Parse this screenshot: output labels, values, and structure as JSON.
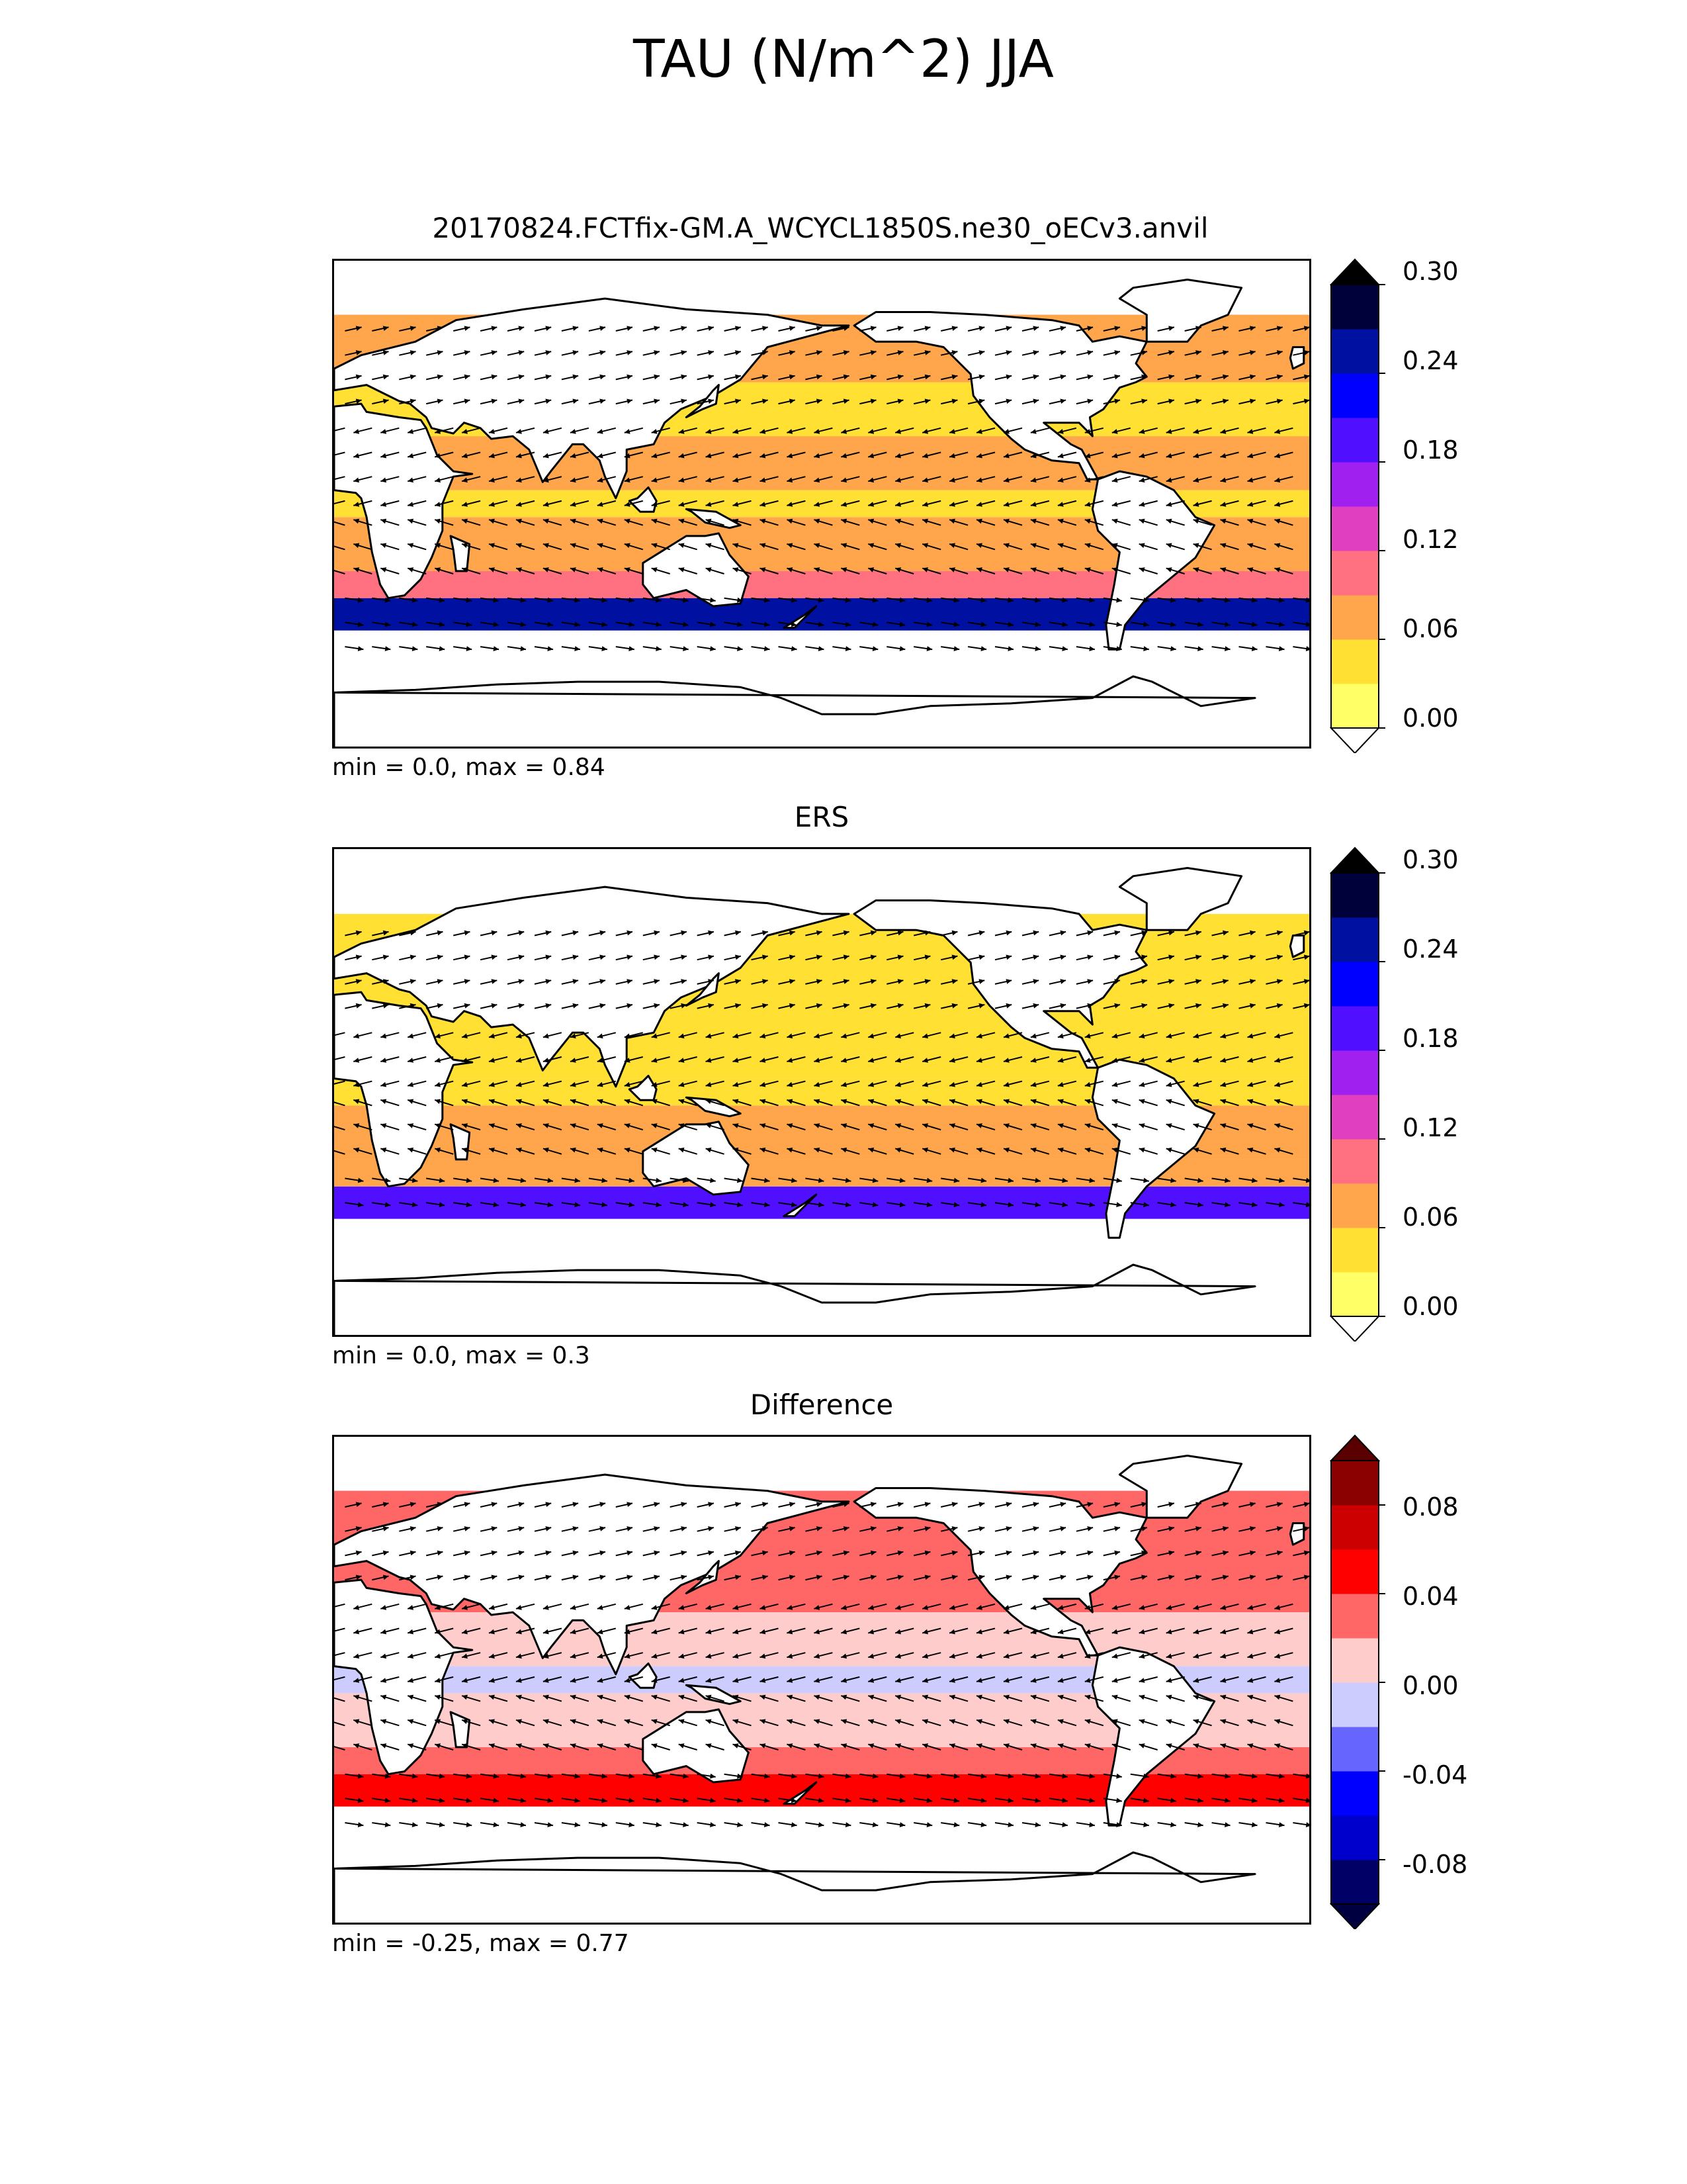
{
  "figure": {
    "title": "TAU (N/m^2) JJA"
  },
  "panels": [
    {
      "id": "test",
      "title": "20170824.FCTfix-GM.A_WCYCL1850S.ne30_oECv3.anvil",
      "stats": "min = 0.0, max = 0.84",
      "colorbar": {
        "colors": [
          "#ffff66",
          "#ffe033",
          "#ffa64d",
          "#ff7080",
          "#e040c0",
          "#a020f0",
          "#5010ff",
          "#0000ff",
          "#0010a0",
          "#00003a"
        ],
        "over_color": "#000000",
        "under_color": "#ffffff",
        "ticks": [
          "0.00",
          "0.06",
          "0.12",
          "0.18",
          "0.24",
          "0.30"
        ]
      }
    },
    {
      "id": "ref",
      "title": "ERS",
      "stats": "min = 0.0, max = 0.3",
      "colorbar": {
        "colors": [
          "#ffff66",
          "#ffe033",
          "#ffa64d",
          "#ff7080",
          "#e040c0",
          "#a020f0",
          "#5010ff",
          "#0000ff",
          "#0010a0",
          "#00003a"
        ],
        "over_color": "#000000",
        "under_color": "#ffffff",
        "ticks": [
          "0.00",
          "0.06",
          "0.12",
          "0.18",
          "0.24",
          "0.30"
        ]
      }
    },
    {
      "id": "diff",
      "title": "Difference",
      "stats": "min = -0.25, max = 0.77",
      "colorbar": {
        "colors": [
          "#000066",
          "#0000cc",
          "#0000ff",
          "#6666ff",
          "#ccccff",
          "#ffcccc",
          "#ff6666",
          "#ff0000",
          "#cc0000",
          "#8b0000"
        ],
        "over_color": "#5a0000",
        "under_color": "#000040",
        "ticks": [
          "-0.08",
          "-0.04",
          "0.00",
          "0.04",
          "0.08"
        ]
      }
    }
  ]
}
